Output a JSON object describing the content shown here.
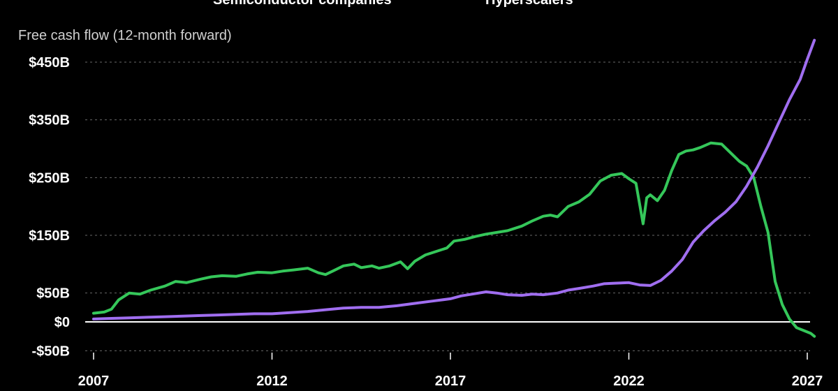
{
  "chart_data": {
    "type": "line",
    "title": "",
    "ylabel": "Free cash flow (12-month forward)",
    "xlabel": "",
    "xlim": [
      2007.0,
      2027.3
    ],
    "ylim": [
      -55,
      490
    ],
    "y_ticks": [
      {
        "value": 450,
        "label": "$450B"
      },
      {
        "value": 350,
        "label": "$350B"
      },
      {
        "value": 250,
        "label": "$250B"
      },
      {
        "value": 150,
        "label": "$150B"
      },
      {
        "value": 50,
        "label": "$50B"
      },
      {
        "value": 0,
        "label": "$0"
      },
      {
        "value": -50,
        "label": "-$50B"
      }
    ],
    "x_ticks": [
      {
        "value": 2007,
        "label": "2007"
      },
      {
        "value": 2012,
        "label": "2012"
      },
      {
        "value": 2017,
        "label": "2017"
      },
      {
        "value": 2022,
        "label": "2022"
      },
      {
        "value": 2027,
        "label": "2027"
      }
    ],
    "grid": "horizontal dashed",
    "legend_position": "top",
    "colors": {
      "background": "#000000",
      "semiconductor": "#35c75a",
      "hyperscalers": "#a06ef0",
      "grid": "#6a6a6a",
      "zero_line": "#ffffff"
    },
    "series": [
      {
        "name": "Semiconductor companies",
        "color": "#35c75a",
        "x": [
          2007.0,
          2007.3,
          2007.5,
          2007.7,
          2008.0,
          2008.3,
          2008.6,
          2009.0,
          2009.3,
          2009.6,
          2010.0,
          2010.3,
          2010.6,
          2011.0,
          2011.3,
          2011.6,
          2012.0,
          2012.3,
          2012.6,
          2013.0,
          2013.3,
          2013.5,
          2013.7,
          2014.0,
          2014.3,
          2014.5,
          2014.8,
          2015.0,
          2015.3,
          2015.6,
          2015.8,
          2016.0,
          2016.3,
          2016.6,
          2016.9,
          2017.1,
          2017.4,
          2017.7,
          2018.0,
          2018.3,
          2018.6,
          2019.0,
          2019.3,
          2019.6,
          2019.8,
          2020.0,
          2020.3,
          2020.6,
          2020.9,
          2021.2,
          2021.5,
          2021.8,
          2022.0,
          2022.2,
          2022.4,
          2022.5,
          2022.6,
          2022.8,
          2023.0,
          2023.2,
          2023.4,
          2023.6,
          2023.8,
          2024.0,
          2024.3,
          2024.6,
          2024.9,
          2025.1,
          2025.3,
          2025.5,
          2025.7,
          2025.9,
          2026.1,
          2026.3,
          2026.5,
          2026.7,
          2026.9,
          2027.1,
          2027.2
        ],
        "values": [
          15,
          17,
          22,
          38,
          50,
          48,
          55,
          62,
          70,
          68,
          74,
          78,
          80,
          79,
          83,
          86,
          85,
          88,
          90,
          93,
          85,
          82,
          88,
          97,
          100,
          94,
          97,
          93,
          97,
          104,
          92,
          105,
          116,
          122,
          128,
          140,
          143,
          148,
          152,
          155,
          158,
          166,
          175,
          183,
          185,
          182,
          200,
          208,
          221,
          244,
          254,
          257,
          248,
          240,
          170,
          215,
          220,
          210,
          228,
          262,
          290,
          296,
          298,
          302,
          310,
          308,
          290,
          278,
          270,
          250,
          200,
          155,
          70,
          30,
          5,
          -10,
          -15,
          -20,
          -25
        ]
      },
      {
        "name": "Hyperscalers",
        "color": "#a06ef0",
        "x": [
          2007.0,
          2007.5,
          2008.0,
          2008.5,
          2009.0,
          2009.5,
          2010.0,
          2010.5,
          2011.0,
          2011.5,
          2012.0,
          2012.5,
          2013.0,
          2013.5,
          2014.0,
          2014.5,
          2015.0,
          2015.5,
          2016.0,
          2016.5,
          2017.0,
          2017.3,
          2017.6,
          2018.0,
          2018.3,
          2018.6,
          2019.0,
          2019.3,
          2019.6,
          2020.0,
          2020.3,
          2020.6,
          2021.0,
          2021.3,
          2021.6,
          2022.0,
          2022.3,
          2022.6,
          2022.9,
          2023.2,
          2023.5,
          2023.8,
          2024.1,
          2024.4,
          2024.7,
          2025.0,
          2025.3,
          2025.6,
          2025.9,
          2026.2,
          2026.5,
          2026.8,
          2027.0,
          2027.2
        ],
        "values": [
          5,
          6,
          7,
          8,
          9,
          10,
          11,
          12,
          13,
          14,
          14,
          16,
          18,
          21,
          24,
          25,
          25,
          28,
          32,
          36,
          40,
          45,
          48,
          52,
          50,
          47,
          46,
          48,
          47,
          50,
          55,
          58,
          62,
          66,
          67,
          68,
          64,
          63,
          72,
          88,
          108,
          138,
          158,
          175,
          190,
          208,
          235,
          268,
          305,
          345,
          385,
          420,
          455,
          488
        ]
      }
    ]
  }
}
